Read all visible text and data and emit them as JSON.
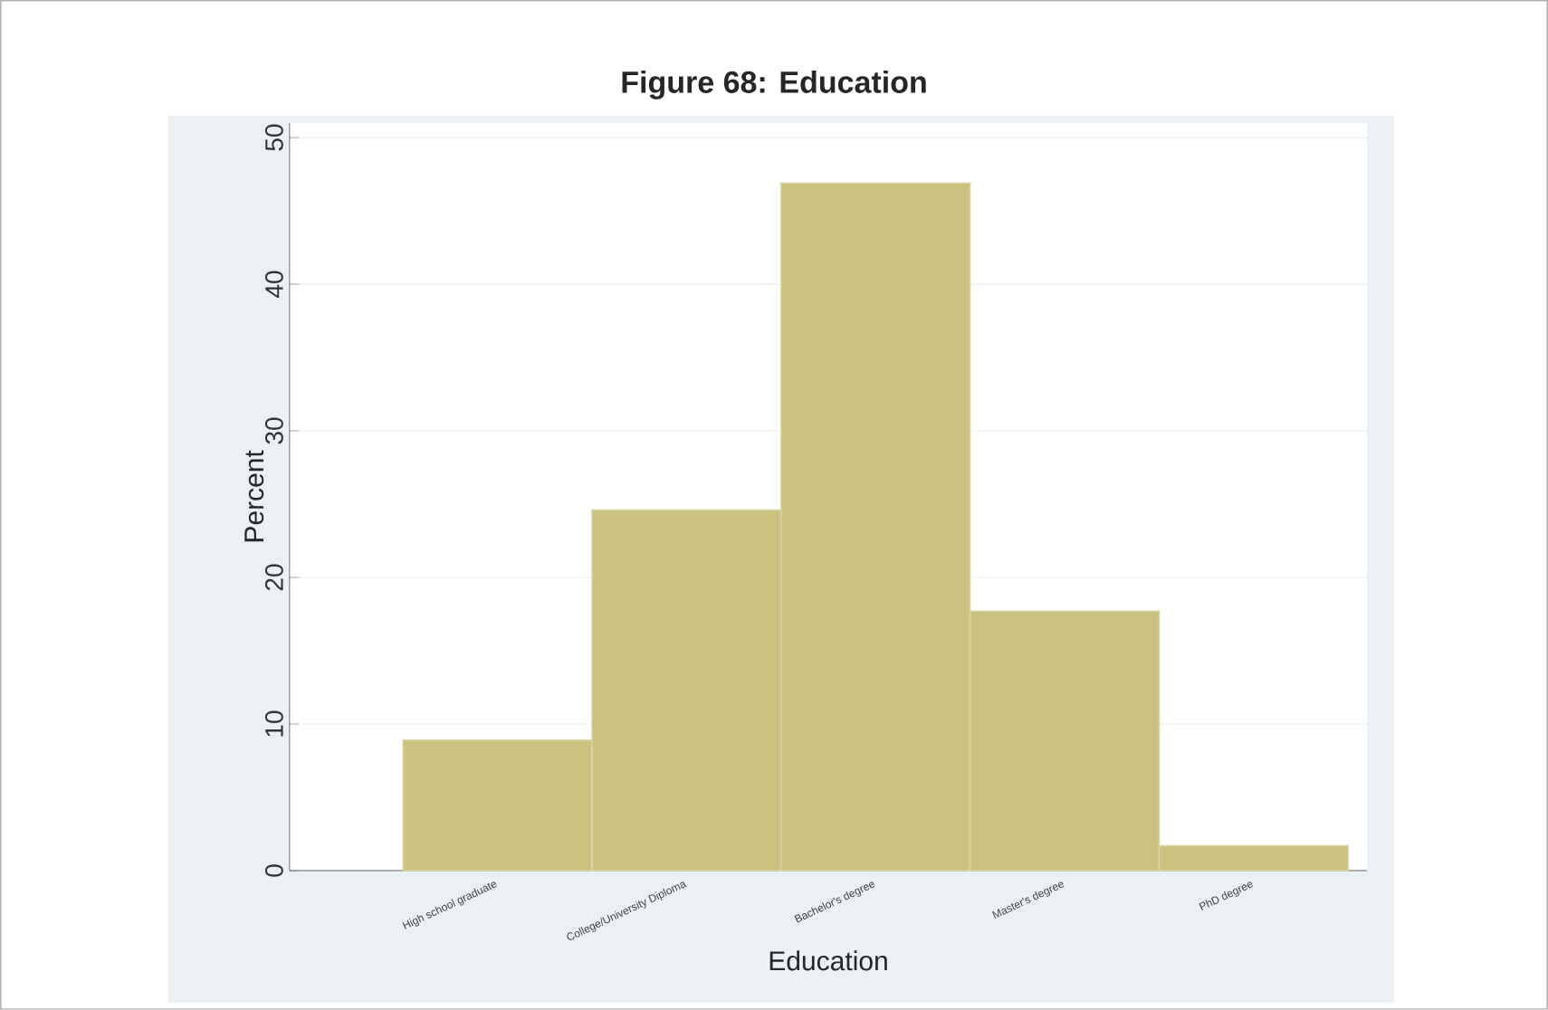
{
  "chart_data": {
    "type": "bar",
    "title": "Figure 68: Education",
    "xlabel": "Education",
    "ylabel": "Percent",
    "categories": [
      "High school graduate",
      "College/University Diploma",
      "Bachelor's degree",
      "Master's degree",
      "PhD degree"
    ],
    "values": [
      8.9,
      24.6,
      46.9,
      17.7,
      1.7
    ],
    "color": "#cbc280",
    "ylim": [
      0,
      51
    ],
    "yticks": [
      0,
      10,
      20,
      30,
      40,
      50
    ],
    "grid": "y"
  }
}
